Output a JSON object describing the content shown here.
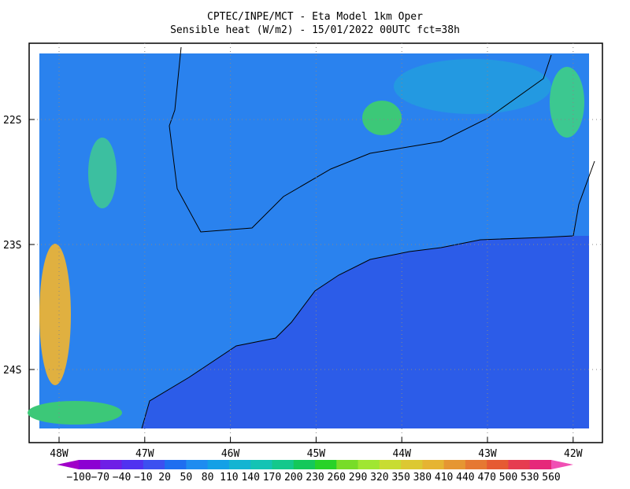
{
  "header": {
    "title": "CPTEC/INPE/MCT -  Eta Model 1km Oper",
    "subtitle": "Sensible heat (W/m2) - 15/01/2022 00UTC fct=38h"
  },
  "lat_labels": [
    "22S",
    "23S",
    "24S"
  ],
  "lon_labels": [
    "48W",
    "47W",
    "46W",
    "45W",
    "44W",
    "43W",
    "42W"
  ],
  "colorbar": {
    "labels": [
      "−100",
      "−70",
      "−40",
      "−10",
      "20",
      "50",
      "80",
      "110",
      "140",
      "170",
      "200",
      "230",
      "260",
      "290",
      "320",
      "350",
      "380",
      "410",
      "440",
      "470",
      "500",
      "530",
      "560"
    ],
    "colors": [
      "#a000c8",
      "#8c00d2",
      "#6e1ee6",
      "#5032f0",
      "#3c50f0",
      "#1e6ef0",
      "#1e8cf0",
      "#14a0e6",
      "#14b4d2",
      "#14c3b4",
      "#14c88c",
      "#14c85a",
      "#28d228",
      "#78dc28",
      "#a0e632",
      "#c8dc32",
      "#dcc832",
      "#e6b432",
      "#e69632",
      "#e67832",
      "#e65a32",
      "#e63c50",
      "#e6287a",
      "#f050b4"
    ]
  }
}
